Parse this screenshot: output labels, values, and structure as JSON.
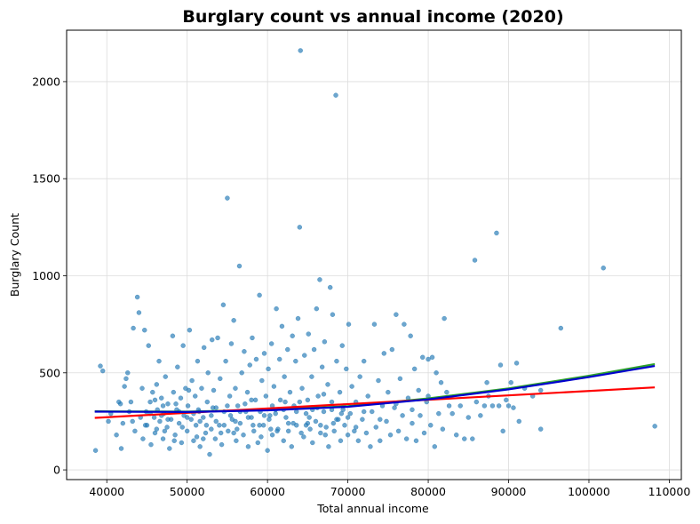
{
  "chart_data": {
    "type": "scatter",
    "title": "Burglary count vs annual income (2020)",
    "xlabel": "Total annual income",
    "ylabel": "Burglary Count",
    "xlim": [
      35000,
      111500
    ],
    "ylim": [
      -50,
      2265
    ],
    "x_ticks": [
      40000,
      50000,
      60000,
      70000,
      80000,
      90000,
      100000,
      110000
    ],
    "y_ticks": [
      0,
      500,
      1000,
      1500,
      2000
    ],
    "grid": true,
    "point_color": "#1f77b4",
    "scatter_points": [
      [
        38600,
        100
      ],
      [
        39200,
        535
      ],
      [
        39500,
        510
      ],
      [
        40500,
        290
      ],
      [
        40200,
        250
      ],
      [
        41200,
        180
      ],
      [
        41500,
        350
      ],
      [
        41700,
        340
      ],
      [
        41800,
        110
      ],
      [
        42000,
        240
      ],
      [
        42200,
        430
      ],
      [
        42400,
        470
      ],
      [
        42600,
        500
      ],
      [
        42800,
        300
      ],
      [
        43000,
        350
      ],
      [
        43200,
        250
      ],
      [
        43300,
        730
      ],
      [
        43500,
        200
      ],
      [
        43800,
        890
      ],
      [
        44000,
        810
      ],
      [
        44200,
        270
      ],
      [
        44400,
        420
      ],
      [
        44500,
        160
      ],
      [
        44700,
        720
      ],
      [
        44900,
        300
      ],
      [
        45000,
        230
      ],
      [
        45200,
        640
      ],
      [
        45400,
        350
      ],
      [
        45500,
        130
      ],
      [
        45700,
        400
      ],
      [
        45900,
        270
      ],
      [
        46000,
        190
      ],
      [
        46200,
        440
      ],
      [
        46300,
        310
      ],
      [
        46500,
        560
      ],
      [
        46600,
        250
      ],
      [
        46800,
        370
      ],
      [
        47000,
        160
      ],
      [
        47100,
        290
      ],
      [
        47300,
        480
      ],
      [
        47500,
        220
      ],
      [
        47600,
        340
      ],
      [
        47800,
        110
      ],
      [
        48000,
        260
      ],
      [
        48200,
        690
      ],
      [
        48300,
        400
      ],
      [
        48500,
        180
      ],
      [
        48700,
        310
      ],
      [
        48800,
        530
      ],
      [
        49000,
        240
      ],
      [
        49200,
        370
      ],
      [
        49300,
        140
      ],
      [
        49500,
        640
      ],
      [
        49600,
        280
      ],
      [
        49800,
        420
      ],
      [
        50000,
        200
      ],
      [
        50100,
        330
      ],
      [
        50300,
        720
      ],
      [
        50500,
        260
      ],
      [
        50600,
        460
      ],
      [
        50800,
        150
      ],
      [
        51000,
        380
      ],
      [
        51100,
        230
      ],
      [
        51300,
        560
      ],
      [
        51500,
        300
      ],
      [
        51600,
        120
      ],
      [
        51800,
        420
      ],
      [
        52000,
        270
      ],
      [
        52100,
        630
      ],
      [
        52300,
        190
      ],
      [
        52500,
        350
      ],
      [
        52600,
        500
      ],
      [
        52800,
        80
      ],
      [
        53000,
        280
      ],
      [
        53100,
        670
      ],
      [
        53300,
        410
      ],
      [
        53500,
        160
      ],
      [
        53600,
        320
      ],
      [
        53800,
        680
      ],
      [
        54000,
        230
      ],
      [
        54100,
        470
      ],
      [
        54300,
        130
      ],
      [
        54500,
        850
      ],
      [
        54600,
        300
      ],
      [
        54800,
        560
      ],
      [
        55000,
        1400
      ],
      [
        55100,
        200
      ],
      [
        55300,
        380
      ],
      [
        55500,
        650
      ],
      [
        55600,
        260
      ],
      [
        55800,
        770
      ],
      [
        56000,
        420
      ],
      [
        56100,
        150
      ],
      [
        56300,
        330
      ],
      [
        56500,
        1050
      ],
      [
        56600,
        240
      ],
      [
        56800,
        500
      ],
      [
        57000,
        180
      ],
      [
        57100,
        610
      ],
      [
        57300,
        300
      ],
      [
        57500,
        400
      ],
      [
        57600,
        120
      ],
      [
        57800,
        540
      ],
      [
        58000,
        270
      ],
      [
        58100,
        680
      ],
      [
        58300,
        200
      ],
      [
        58500,
        360
      ],
      [
        58600,
        570
      ],
      [
        58800,
        140
      ],
      [
        59000,
        900
      ],
      [
        59100,
        300
      ],
      [
        59300,
        460
      ],
      [
        59500,
        230
      ],
      [
        59600,
        600
      ],
      [
        59800,
        380
      ],
      [
        60000,
        100
      ],
      [
        60100,
        520
      ],
      [
        60300,
        280
      ],
      [
        60500,
        650
      ],
      [
        60600,
        180
      ],
      [
        60800,
        430
      ],
      [
        61000,
        310
      ],
      [
        61100,
        830
      ],
      [
        61300,
        210
      ],
      [
        61500,
        570
      ],
      [
        61600,
        360
      ],
      [
        61800,
        740
      ],
      [
        62000,
        150
      ],
      [
        62100,
        480
      ],
      [
        62300,
        270
      ],
      [
        62500,
        620
      ],
      [
        62600,
        200
      ],
      [
        62800,
        400
      ],
      [
        63000,
        120
      ],
      [
        63100,
        690
      ],
      [
        63300,
        330
      ],
      [
        63500,
        560
      ],
      [
        63600,
        230
      ],
      [
        63800,
        780
      ],
      [
        64000,
        1250
      ],
      [
        64100,
        2160
      ],
      [
        64300,
        420
      ],
      [
        64500,
        170
      ],
      [
        64600,
        590
      ],
      [
        64800,
        290
      ],
      [
        65000,
        360
      ],
      [
        65100,
        700
      ],
      [
        65300,
        210
      ],
      [
        65500,
        480
      ],
      [
        65600,
        140
      ],
      [
        65800,
        620
      ],
      [
        66000,
        250
      ],
      [
        66100,
        830
      ],
      [
        66300,
        380
      ],
      [
        66500,
        980
      ],
      [
        66600,
        190
      ],
      [
        66800,
        530
      ],
      [
        67000,
        300
      ],
      [
        67100,
        660
      ],
      [
        67300,
        220
      ],
      [
        67500,
        440
      ],
      [
        67600,
        120
      ],
      [
        67800,
        940
      ],
      [
        68000,
        310
      ],
      [
        68100,
        800
      ],
      [
        68300,
        200
      ],
      [
        68500,
        1930
      ],
      [
        68600,
        560
      ],
      [
        68800,
        260
      ],
      [
        69000,
        400
      ],
      [
        69100,
        150
      ],
      [
        69300,
        640
      ],
      [
        69500,
        330
      ],
      [
        69600,
        230
      ],
      [
        69800,
        520
      ],
      [
        70000,
        180
      ],
      [
        70100,
        750
      ],
      [
        70300,
        290
      ],
      [
        70500,
        430
      ],
      [
        70800,
        200
      ],
      [
        71000,
        350
      ],
      [
        71300,
        150
      ],
      [
        71500,
        480
      ],
      [
        71800,
        260
      ],
      [
        72000,
        560
      ],
      [
        72300,
        190
      ],
      [
        72500,
        380
      ],
      [
        72800,
        120
      ],
      [
        73000,
        300
      ],
      [
        73300,
        750
      ],
      [
        73500,
        220
      ],
      [
        73800,
        460
      ],
      [
        74000,
        150
      ],
      [
        74300,
        330
      ],
      [
        74500,
        600
      ],
      [
        74800,
        250
      ],
      [
        75000,
        400
      ],
      [
        75300,
        180
      ],
      [
        75500,
        620
      ],
      [
        75800,
        320
      ],
      [
        76000,
        800
      ],
      [
        76300,
        200
      ],
      [
        76500,
        470
      ],
      [
        76800,
        280
      ],
      [
        77000,
        750
      ],
      [
        77300,
        160
      ],
      [
        77500,
        370
      ],
      [
        77800,
        690
      ],
      [
        78000,
        240
      ],
      [
        78300,
        520
      ],
      [
        78500,
        150
      ],
      [
        78800,
        410
      ],
      [
        79000,
        280
      ],
      [
        79300,
        580
      ],
      [
        79500,
        190
      ],
      [
        79800,
        350
      ],
      [
        80000,
        570
      ],
      [
        80300,
        230
      ],
      [
        80500,
        580
      ],
      [
        80800,
        120
      ],
      [
        81000,
        500
      ],
      [
        81300,
        290
      ],
      [
        81600,
        450
      ],
      [
        81800,
        210
      ],
      [
        82000,
        780
      ],
      [
        82300,
        400
      ],
      [
        82600,
        330
      ],
      [
        83000,
        290
      ],
      [
        83500,
        180
      ],
      [
        84000,
        330
      ],
      [
        84500,
        160
      ],
      [
        85000,
        270
      ],
      [
        85500,
        160
      ],
      [
        85800,
        1080
      ],
      [
        86000,
        350
      ],
      [
        86500,
        280
      ],
      [
        87000,
        330
      ],
      [
        87300,
        450
      ],
      [
        87500,
        380
      ],
      [
        88000,
        330
      ],
      [
        88500,
        1220
      ],
      [
        88800,
        330
      ],
      [
        89000,
        540
      ],
      [
        89300,
        200
      ],
      [
        89700,
        360
      ],
      [
        90000,
        330
      ],
      [
        90300,
        450
      ],
      [
        90600,
        320
      ],
      [
        91000,
        550
      ],
      [
        91300,
        250
      ],
      [
        92000,
        420
      ],
      [
        93000,
        380
      ],
      [
        94000,
        410
      ],
      [
        94000,
        210
      ],
      [
        96500,
        730
      ],
      [
        101800,
        1040
      ],
      [
        108200,
        225
      ],
      [
        46200,
        210
      ],
      [
        47000,
        330
      ],
      [
        48400,
        150
      ],
      [
        49000,
        300
      ],
      [
        50200,
        410
      ],
      [
        51200,
        170
      ],
      [
        52400,
        230
      ],
      [
        53200,
        320
      ],
      [
        54200,
        190
      ],
      [
        55400,
        280
      ],
      [
        56200,
        210
      ],
      [
        57200,
        340
      ],
      [
        58200,
        230
      ],
      [
        59200,
        170
      ],
      [
        60200,
        260
      ],
      [
        61200,
        200
      ],
      [
        62200,
        350
      ],
      [
        63200,
        240
      ],
      [
        64200,
        190
      ],
      [
        65200,
        270
      ],
      [
        66200,
        320
      ],
      [
        67200,
        180
      ],
      [
        68200,
        240
      ],
      [
        69200,
        290
      ],
      [
        47600,
        260
      ],
      [
        50800,
        290
      ],
      [
        53600,
        250
      ],
      [
        56600,
        300
      ],
      [
        59600,
        280
      ],
      [
        62600,
        240
      ],
      [
        65600,
        310
      ],
      [
        68600,
        260
      ],
      [
        45400,
        290
      ],
      [
        48600,
        340
      ],
      [
        51600,
        250
      ],
      [
        54600,
        230
      ],
      [
        57600,
        270
      ],
      [
        60600,
        330
      ],
      [
        63600,
        300
      ],
      [
        66600,
        230
      ],
      [
        44800,
        230
      ],
      [
        46000,
        360
      ],
      [
        49400,
        220
      ],
      [
        52000,
        160
      ],
      [
        55000,
        330
      ],
      [
        58000,
        360
      ],
      [
        61000,
        290
      ],
      [
        64000,
        350
      ],
      [
        67000,
        390
      ],
      [
        70000,
        270
      ],
      [
        72000,
        300
      ],
      [
        74000,
        260
      ],
      [
        76000,
        340
      ],
      [
        78000,
        310
      ],
      [
        80000,
        380
      ],
      [
        46800,
        280
      ],
      [
        50000,
        270
      ],
      [
        53000,
        210
      ],
      [
        56000,
        250
      ],
      [
        59000,
        230
      ],
      [
        62000,
        310
      ],
      [
        65000,
        240
      ],
      [
        68000,
        350
      ],
      [
        71000,
        220
      ],
      [
        47200,
        200
      ],
      [
        51400,
        310
      ],
      [
        55800,
        190
      ],
      [
        60400,
        210
      ],
      [
        64800,
        230
      ],
      [
        69400,
        310
      ]
    ],
    "series": [
      {
        "kind": "trend",
        "color": "#2ca02c",
        "x": [
          38500,
          50000,
          60000,
          70000,
          80000,
          90000,
          100000,
          108200
        ],
        "values": [
          302,
          300,
          310,
          328,
          368,
          420,
          485,
          545
        ]
      },
      {
        "kind": "trend",
        "color": "#ff0000",
        "x": [
          38500,
          108200
        ],
        "values": [
          268,
          425
        ]
      },
      {
        "kind": "trend",
        "color": "#0000cd",
        "x": [
          38500,
          50000,
          60000,
          70000,
          80000,
          90000,
          100000,
          108200
        ],
        "values": [
          300,
          298,
          307,
          325,
          363,
          415,
          478,
          535
        ]
      }
    ]
  }
}
